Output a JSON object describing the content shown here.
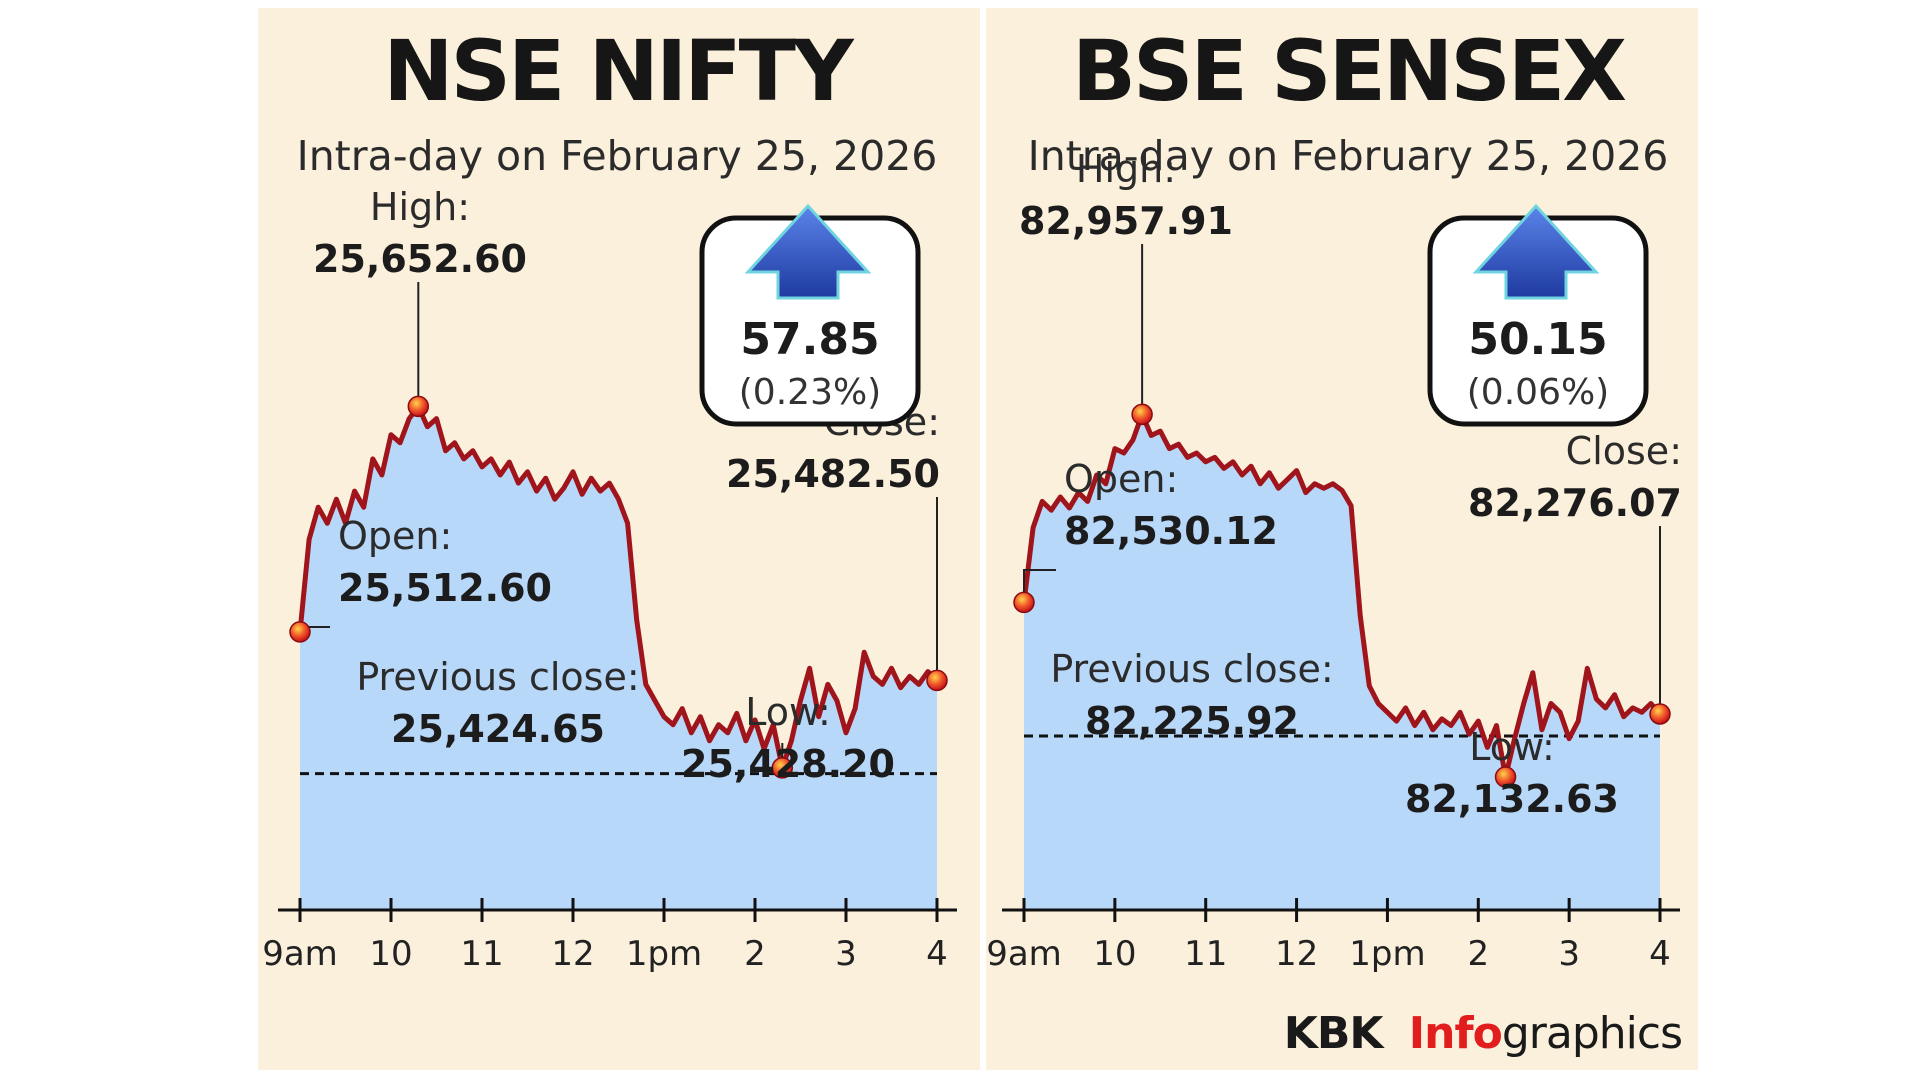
{
  "chart_data": [
    {
      "type": "area",
      "title": "NSE NIFTY",
      "subtitle": "Intra-day on February 25, 2026",
      "x_ticks": [
        "9am",
        "10",
        "11",
        "12",
        "1pm",
        "2",
        "3",
        "4"
      ],
      "x": [
        9.0,
        9.1,
        9.2,
        9.3,
        9.4,
        9.5,
        9.6,
        9.7,
        9.8,
        9.9,
        10.0,
        10.1,
        10.2,
        10.3,
        10.4,
        10.5,
        10.6,
        10.7,
        10.8,
        10.9,
        11.0,
        11.1,
        11.2,
        11.3,
        11.4,
        11.5,
        11.6,
        11.7,
        11.8,
        11.9,
        12.0,
        12.1,
        12.2,
        12.3,
        12.4,
        12.5,
        12.6,
        12.7,
        12.8,
        12.9,
        13.0,
        13.1,
        13.2,
        13.3,
        13.4,
        13.5,
        13.6,
        13.7,
        13.8,
        13.9,
        14.0,
        14.1,
        14.2,
        14.3,
        14.4,
        14.5,
        14.6,
        14.7,
        14.8,
        14.9,
        15.0,
        15.1,
        15.2,
        15.3,
        15.4,
        15.5,
        15.6,
        15.7,
        15.8,
        15.9,
        16.0
      ],
      "y": [
        25512.6,
        25570,
        25590,
        25580,
        25595,
        25580,
        25600,
        25590,
        25620,
        25610,
        25635,
        25630,
        25645,
        25652.6,
        25640,
        25645,
        25625,
        25630,
        25620,
        25625,
        25615,
        25620,
        25610,
        25618,
        25605,
        25612,
        25600,
        25608,
        25595,
        25602,
        25612,
        25598,
        25608,
        25600,
        25605,
        25595,
        25580,
        25520,
        25480,
        25470,
        25460,
        25455,
        25465,
        25450,
        25460,
        25445,
        25455,
        25450,
        25462,
        25445,
        25458,
        25440,
        25455,
        25428.2,
        25445,
        25470,
        25490,
        25460,
        25480,
        25470,
        25450,
        25465,
        25500,
        25485,
        25480,
        25490,
        25478,
        25485,
        25480,
        25488,
        25482.5
      ],
      "y_domain": [
        25340,
        25700
      ],
      "previous_close": {
        "label": "Previous close:",
        "value": 25424.65,
        "value_text": "25,424.65"
      },
      "open": {
        "label": "Open:",
        "value": 25512.6,
        "value_text": "25,512.60"
      },
      "high": {
        "label": "High:",
        "value": 25652.6,
        "value_text": "25,652.60",
        "x": 10.3
      },
      "low": {
        "label": "Low:",
        "value": 25428.2,
        "value_text": "25,428.20",
        "x": 14.3
      },
      "close": {
        "label": "Close:",
        "value": 25482.5,
        "value_text": "25,482.50"
      },
      "change": {
        "value_text": "57.85",
        "percent_text": "(0.23%)",
        "direction": "up"
      }
    },
    {
      "type": "area",
      "title": "BSE SENSEX",
      "subtitle": "Intra-day on February 25, 2026",
      "x_ticks": [
        "9am",
        "10",
        "11",
        "12",
        "1pm",
        "2",
        "3",
        "4"
      ],
      "x": [
        9.0,
        9.1,
        9.2,
        9.3,
        9.4,
        9.5,
        9.6,
        9.7,
        9.8,
        9.9,
        10.0,
        10.1,
        10.2,
        10.3,
        10.4,
        10.5,
        10.6,
        10.7,
        10.8,
        10.9,
        11.0,
        11.1,
        11.2,
        11.3,
        11.4,
        11.5,
        11.6,
        11.7,
        11.8,
        11.9,
        12.0,
        12.1,
        12.2,
        12.3,
        12.4,
        12.5,
        12.6,
        12.7,
        12.8,
        12.9,
        13.0,
        13.1,
        13.2,
        13.3,
        13.4,
        13.5,
        13.6,
        13.7,
        13.8,
        13.9,
        14.0,
        14.1,
        14.2,
        14.3,
        14.4,
        14.5,
        14.6,
        14.7,
        14.8,
        14.9,
        15.0,
        15.1,
        15.2,
        15.3,
        15.4,
        15.5,
        15.6,
        15.7,
        15.8,
        15.9,
        16.0
      ],
      "y": [
        82530.12,
        82700,
        82760,
        82740,
        82770,
        82745,
        82780,
        82760,
        82820,
        82800,
        82880,
        82870,
        82900,
        82957.91,
        82910,
        82920,
        82880,
        82890,
        82860,
        82870,
        82850,
        82860,
        82835,
        82850,
        82820,
        82840,
        82800,
        82825,
        82790,
        82810,
        82830,
        82780,
        82800,
        82790,
        82800,
        82785,
        82750,
        82500,
        82340,
        82300,
        82280,
        82260,
        82290,
        82250,
        82280,
        82240,
        82265,
        82250,
        82280,
        82230,
        82260,
        82200,
        82250,
        82132.63,
        82220,
        82300,
        82370,
        82240,
        82300,
        82280,
        82220,
        82260,
        82380,
        82310,
        82290,
        82320,
        82270,
        82290,
        82280,
        82300,
        82276.07
      ],
      "y_domain": [
        81830,
        83150
      ],
      "previous_close": {
        "label": "Previous close:",
        "value": 82225.92,
        "value_text": "82,225.92"
      },
      "open": {
        "label": "Open:",
        "value": 82530.12,
        "value_text": "82,530.12"
      },
      "high": {
        "label": "High:",
        "value": 82957.91,
        "value_text": "82,957.91",
        "x": 10.3
      },
      "low": {
        "label": "Low:",
        "value": 82132.63,
        "value_text": "82,132.63",
        "x": 14.3
      },
      "close": {
        "label": "Close:",
        "value": 82276.07,
        "value_text": "82,276.07"
      },
      "change": {
        "value_text": "50.15",
        "percent_text": "(0.06%)",
        "direction": "up"
      }
    }
  ],
  "credit": {
    "brand_a": "KBK",
    "brand_b": "Info",
    "brand_c": "graphics"
  },
  "colors": {
    "line": "#a0141b",
    "area": "#b8d8fa",
    "area_shadow": "#8fb5e6",
    "marker": "#e8231f",
    "arrow": "#2a4fc8",
    "panel": "#fbf0dc"
  }
}
